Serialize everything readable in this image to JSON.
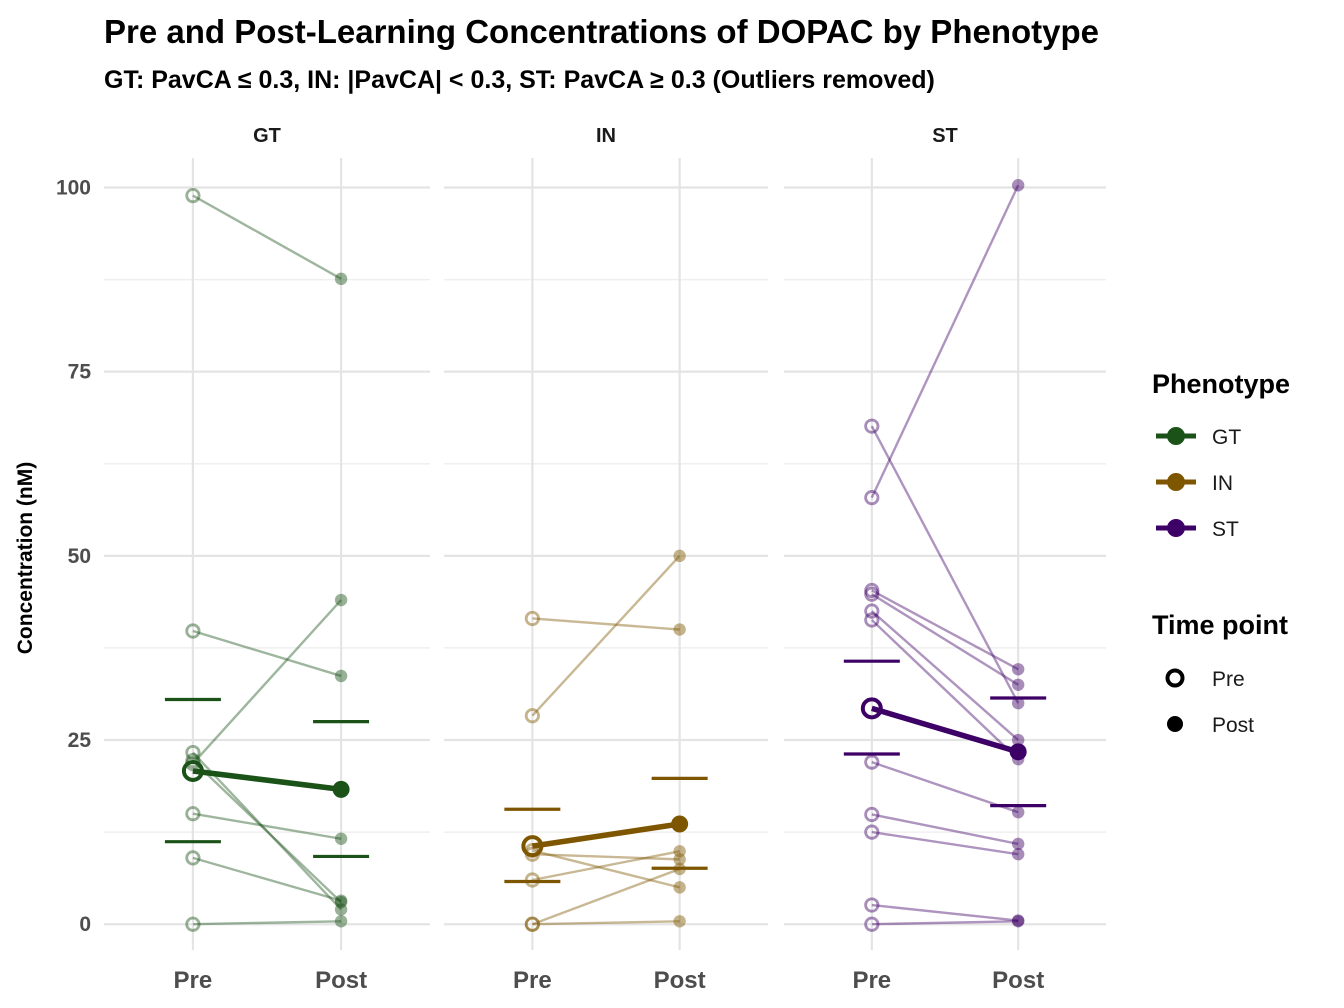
{
  "chart_data": {
    "type": "line",
    "title": "Pre and Post-Learning Concentrations of DOPAC by Phenotype",
    "subtitle": "GT: PavCA ≤ 0.3, IN: |PavCA| < 0.3, ST: PavCA ≥ 0.3 (Outliers removed)",
    "ylabel": "Concentration (nM)",
    "xlabel": "",
    "categories": [
      "Pre",
      "Post"
    ],
    "yticks": [
      0,
      25,
      50,
      75,
      100
    ],
    "ylim": [
      -3.5,
      104
    ],
    "grid": true,
    "facets": [
      {
        "name": "GT",
        "color": "#1b5218",
        "subjects": [
          {
            "pre": 98.9,
            "post": 87.6
          },
          {
            "pre": 39.8,
            "post": 33.7
          },
          {
            "pre": 23.3,
            "post": 2.0
          },
          {
            "pre": 21.8,
            "post": 44.0
          },
          {
            "pre": 22.2,
            "post": 3.0
          },
          {
            "pre": 15.0,
            "post": 11.6
          },
          {
            "pre": 9.0,
            "post": 3.2
          },
          {
            "pre": 0.0,
            "post": 0.4
          }
        ],
        "mean": {
          "pre": 20.8,
          "post": 18.3
        },
        "error": {
          "pre_upper": 30.5,
          "pre_lower": 11.2,
          "post_upper": 27.5,
          "post_lower": 9.2
        }
      },
      {
        "name": "IN",
        "color": "#7f5600",
        "subjects": [
          {
            "pre": 41.5,
            "post": 40.0
          },
          {
            "pre": 28.3,
            "post": 50.0
          },
          {
            "pre": 10.0,
            "post": 5.0
          },
          {
            "pre": 9.5,
            "post": 8.8
          },
          {
            "pre": 6.0,
            "post": 9.9
          },
          {
            "pre": 0.0,
            "post": 7.5
          },
          {
            "pre": 0.0,
            "post": 0.4
          }
        ],
        "mean": {
          "pre": 10.6,
          "post": 13.6
        },
        "error": {
          "pre_upper": 15.6,
          "pre_lower": 5.8,
          "post_upper": 19.8,
          "post_lower": 7.6
        }
      },
      {
        "name": "ST",
        "color": "#3d0066",
        "subjects": [
          {
            "pre": 67.6,
            "post": 30.0
          },
          {
            "pre": 57.9,
            "post": 100.3
          },
          {
            "pre": 45.3,
            "post": 34.6
          },
          {
            "pre": 44.8,
            "post": 32.5
          },
          {
            "pre": 42.5,
            "post": 25.0
          },
          {
            "pre": 41.3,
            "post": 22.4
          },
          {
            "pre": 22.0,
            "post": 15.2
          },
          {
            "pre": 14.9,
            "post": 10.9
          },
          {
            "pre": 12.5,
            "post": 9.5
          },
          {
            "pre": 2.6,
            "post": 0.5
          },
          {
            "pre": 0.0,
            "post": 0.4
          }
        ],
        "mean": {
          "pre": 29.3,
          "post": 23.4
        },
        "error": {
          "pre_upper": 35.7,
          "pre_lower": 23.1,
          "post_upper": 30.7,
          "post_lower": 16.1
        }
      }
    ],
    "legend": {
      "placement": "right",
      "phenotype_title": "Phenotype",
      "phenotype_items": [
        {
          "label": "GT",
          "color": "#1b5218"
        },
        {
          "label": "IN",
          "color": "#7f5600"
        },
        {
          "label": "ST",
          "color": "#3d0066"
        }
      ],
      "time_title": "Time point",
      "time_items": [
        {
          "label": "Pre",
          "shape": "open-circle"
        },
        {
          "label": "Post",
          "shape": "filled-circle"
        }
      ]
    }
  }
}
